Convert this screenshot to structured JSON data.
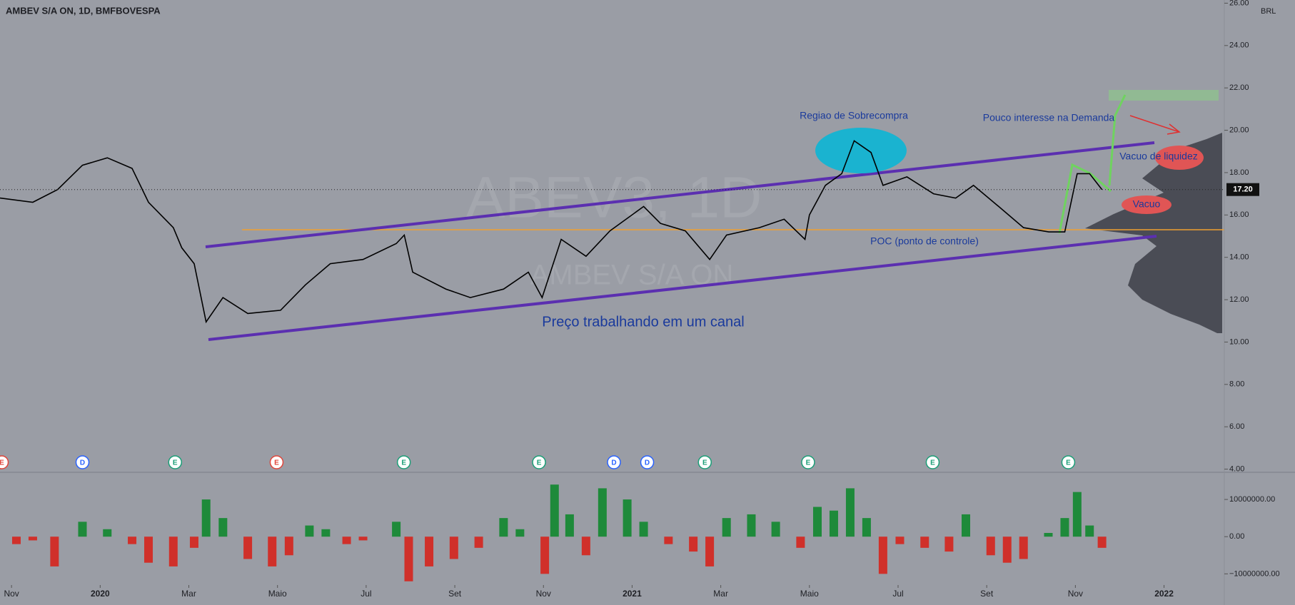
{
  "chart_data": [
    {
      "type": "line",
      "title": "AMBEV S/A ON, 1D, BMFBOVESPA",
      "currency": "BRL",
      "watermark": "ABEV3, 1D",
      "watermark_sub": "AMBEV S/A ON",
      "x": [
        -0.26,
        0.48,
        1.04,
        1.6,
        2.16,
        2.72,
        3.09,
        3.65,
        3.84,
        4.12,
        4.39,
        4.77,
        5.33,
        6.07,
        6.63,
        7.19,
        7.93,
        8.68,
        8.86,
        9.05,
        9.8,
        10.35,
        11.1,
        11.66,
        11.97,
        12.4,
        12.96,
        13.5,
        14.26,
        14.64,
        15.2,
        15.75,
        16.13,
        16.87,
        17.43,
        17.9,
        18.0,
        18.36,
        18.73,
        19.01,
        19.39,
        19.66,
        20.2,
        20.8,
        21.3,
        21.7,
        22.27,
        22.83,
        23.4,
        23.76,
        24.04,
        24.32,
        24.6
      ],
      "values": [
        16.8,
        16.6,
        17.2,
        18.35,
        18.7,
        18.2,
        16.6,
        15.4,
        14.45,
        13.7,
        10.95,
        12.1,
        11.35,
        11.5,
        12.7,
        13.7,
        13.9,
        14.65,
        15.05,
        13.3,
        12.5,
        12.1,
        12.5,
        13.3,
        12.1,
        14.85,
        14.05,
        15.25,
        16.4,
        15.6,
        15.25,
        13.9,
        15.05,
        15.4,
        15.8,
        14.85,
        16.0,
        17.4,
        17.95,
        19.5,
        18.95,
        17.4,
        17.8,
        17.0,
        16.8,
        17.4,
        16.4,
        15.4,
        15.2,
        15.2,
        17.95,
        17.95,
        17.2
      ],
      "color": "#000000",
      "last_price": {
        "value": 17.2,
        "label": "17.20"
      },
      "xlim": [
        -0.26,
        27.36
      ],
      "ylim": [
        3.85,
        26.15
      ],
      "yticks": [
        {
          "value": 26,
          "label": "26.00"
        },
        {
          "value": 24,
          "label": "24.00"
        },
        {
          "value": 22,
          "label": "22.00"
        },
        {
          "value": 20,
          "label": "20.00"
        },
        {
          "value": 18,
          "label": "18.00"
        },
        {
          "value": 16,
          "label": "16.00"
        },
        {
          "value": 14,
          "label": "14.00"
        },
        {
          "value": 12,
          "label": "12.00"
        },
        {
          "value": 10,
          "label": "10.00"
        },
        {
          "value": 8,
          "label": "8.00"
        },
        {
          "value": 6,
          "label": "6.00"
        },
        {
          "value": 4,
          "label": "4.00"
        }
      ],
      "annotations": [
        "Preço trabalhando em um canal",
        "Regiao de Sobrecompra",
        "Pouco interesse na Demanda",
        "Vacuo de liquidez",
        "Vacuo",
        "POC (ponto de controle)"
      ],
      "events": [
        {
          "x": -0.22,
          "label": "E",
          "color": "#e0453a"
        },
        {
          "x": 1.6,
          "label": "D",
          "color": "#2962ff"
        },
        {
          "x": 3.69,
          "label": "E",
          "color": "#1b9e77"
        },
        {
          "x": 5.98,
          "label": "E",
          "color": "#e0453a"
        },
        {
          "x": 8.85,
          "label": "E",
          "color": "#1b9e77"
        },
        {
          "x": 11.9,
          "label": "E",
          "color": "#1b9e77"
        },
        {
          "x": 13.59,
          "label": "D",
          "color": "#2962ff"
        },
        {
          "x": 14.34,
          "label": "D",
          "color": "#2962ff"
        },
        {
          "x": 15.64,
          "label": "E",
          "color": "#1b9e77"
        },
        {
          "x": 17.97,
          "label": "E",
          "color": "#1b9e77"
        },
        {
          "x": 20.78,
          "label": "E",
          "color": "#1b9e77"
        },
        {
          "x": 23.84,
          "label": "E",
          "color": "#1b9e77"
        }
      ]
    },
    {
      "type": "bar",
      "x": [
        0.11,
        0.48,
        0.97,
        1.6,
        2.16,
        2.72,
        3.09,
        3.65,
        4.12,
        4.39,
        4.77,
        5.33,
        5.88,
        6.26,
        6.72,
        7.09,
        7.56,
        7.93,
        8.68,
        8.96,
        9.42,
        9.98,
        10.54,
        11.1,
        11.47,
        12.03,
        12.25,
        12.59,
        12.96,
        13.33,
        13.89,
        14.26,
        14.82,
        15.38,
        15.75,
        16.13,
        16.69,
        17.24,
        17.8,
        18.18,
        18.55,
        18.92,
        19.29,
        19.66,
        20.04,
        20.6,
        21.15,
        21.53,
        22.09,
        22.46,
        22.83,
        23.39,
        23.76,
        24.04,
        24.32,
        24.6
      ],
      "values": [
        -2000000,
        -1000000,
        -8000000,
        4000000,
        2000000,
        -2000000,
        -7000000,
        -8000000,
        -3000000,
        10000000,
        5000000,
        -6000000,
        -8000000,
        -5000000,
        3000000,
        2000000,
        -2000000,
        -1000000,
        4000000,
        -12000000,
        -8000000,
        -6000000,
        -3000000,
        5000000,
        2000000,
        -10000000,
        14000000,
        6000000,
        -5000000,
        13000000,
        10000000,
        4000000,
        -2000000,
        -4000000,
        -8000000,
        5000000,
        6000000,
        4000000,
        -3000000,
        8000000,
        7000000,
        13000000,
        5000000,
        -10000000,
        -2000000,
        -3000000,
        -4000000,
        6000000,
        -5000000,
        -7000000,
        -6000000,
        1000000,
        5000000,
        12000000,
        3000000,
        -3000000
      ],
      "up_color": "#1e8a3a",
      "down_color": "#d0302a",
      "xlim": [
        -0.26,
        27.36
      ],
      "ylim": [
        -13000000,
        17300000
      ],
      "yticks": [
        {
          "value": 10000000,
          "label": "10000000.00"
        },
        {
          "value": 0,
          "label": "0.00"
        },
        {
          "value": -10000000,
          "label": "−10000000.00"
        }
      ],
      "xticks": [
        {
          "value": 0,
          "label": "Nov"
        },
        {
          "value": 2,
          "label": "2020"
        },
        {
          "value": 4,
          "label": "Mar"
        },
        {
          "value": 6,
          "label": "Maio"
        },
        {
          "value": 8,
          "label": "Jul"
        },
        {
          "value": 10,
          "label": "Set"
        },
        {
          "value": 12,
          "label": "Nov"
        },
        {
          "value": 14,
          "label": "2021"
        },
        {
          "value": 16,
          "label": "Mar"
        },
        {
          "value": 18,
          "label": "Maio"
        },
        {
          "value": 20,
          "label": "Jul"
        },
        {
          "value": 22,
          "label": "Set"
        },
        {
          "value": 24,
          "label": "Nov"
        },
        {
          "value": 26,
          "label": "2022"
        }
      ]
    }
  ]
}
